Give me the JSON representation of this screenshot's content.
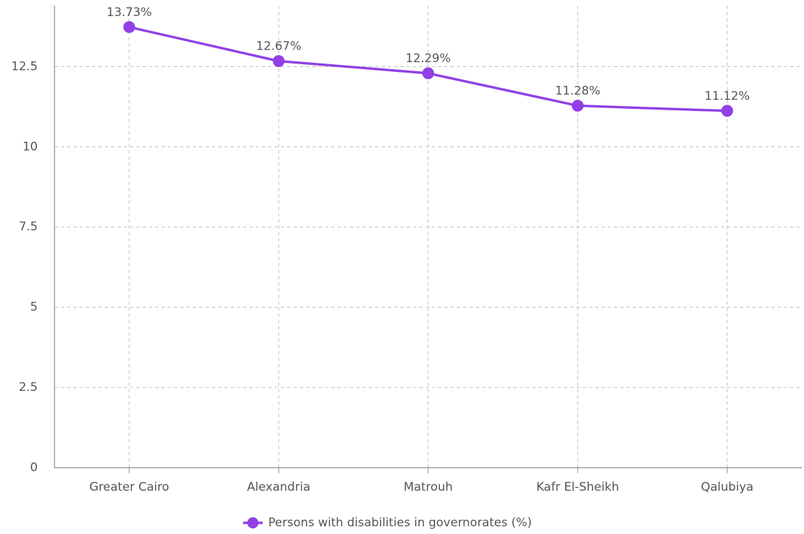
{
  "chart_data": {
    "type": "line",
    "categories": [
      "Greater Cairo",
      "Alexandria",
      "Matrouh",
      "Kafr El-Sheikh",
      "Qalubiya"
    ],
    "series": [
      {
        "name": "Persons with disabilities in governorates (%)",
        "color": "#9140e6",
        "values": [
          13.73,
          12.67,
          12.29,
          11.28,
          11.12
        ],
        "value_labels": [
          "13.73%",
          "12.67%",
          "12.29%",
          "11.28%",
          "11.12%"
        ]
      }
    ],
    "ylim": [
      0,
      14.4
    ],
    "yticks": [
      0,
      2.5,
      5,
      7.5,
      10,
      12.5
    ],
    "grid": true,
    "legend": "bottom"
  }
}
